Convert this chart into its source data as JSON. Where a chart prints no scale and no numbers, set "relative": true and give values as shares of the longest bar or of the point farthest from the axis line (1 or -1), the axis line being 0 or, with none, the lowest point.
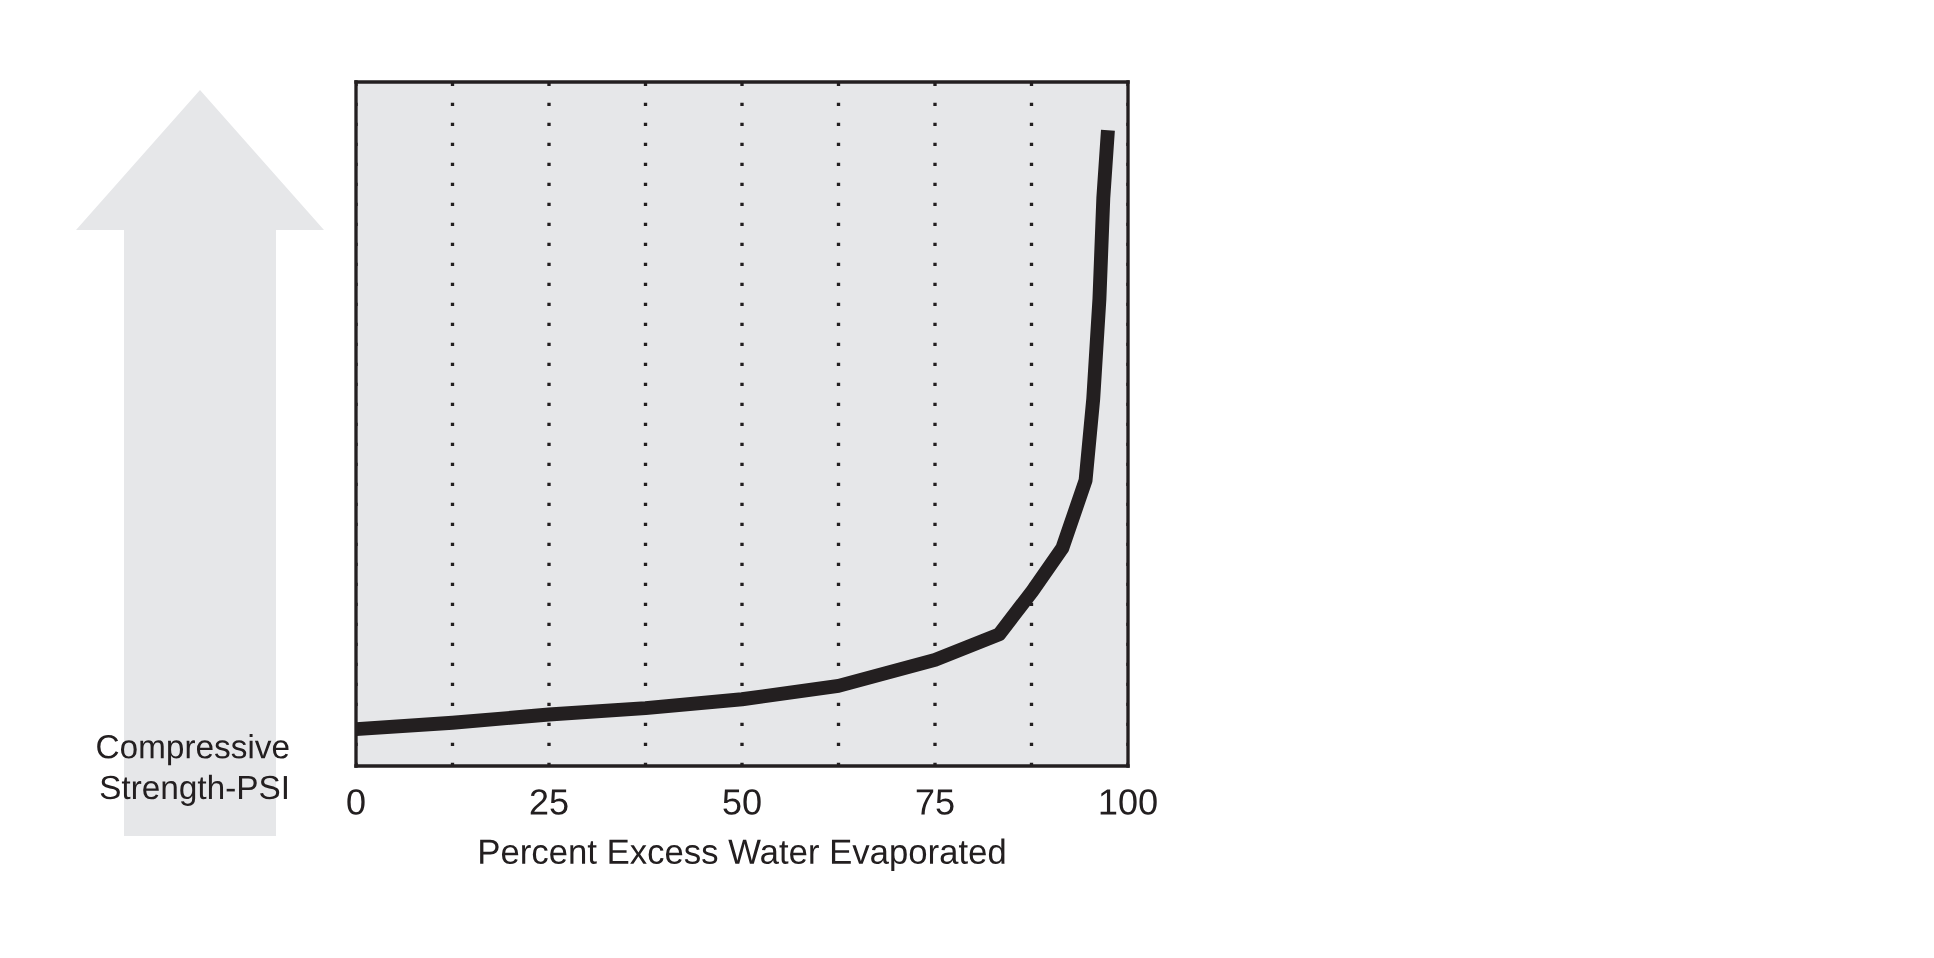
{
  "chart_data": {
    "type": "line",
    "relative": true,
    "xlabel": "Percent Excess Water Evaporated",
    "ylabel": "Compressive\nStrength-PSI",
    "series": [
      {
        "color": "#231f20",
        "x": [
          0,
          12.5,
          25,
          37.5,
          50,
          62.5,
          75,
          83.3,
          87.6,
          91.5,
          94.5,
          95.5,
          96.3,
          96.8,
          97.4
        ],
        "values": [
          0.058,
          0.068,
          0.081,
          0.091,
          0.105,
          0.126,
          0.167,
          0.207,
          0.275,
          0.343,
          0.449,
          0.578,
          0.735,
          0.893,
          1
        ]
      }
    ],
    "xlim": [
      0,
      100
    ],
    "xticks": [
      0,
      {
        "value": 12.5,
        "label": null
      },
      25,
      {
        "value": 37.5,
        "label": null
      },
      50,
      {
        "value": 62.5,
        "label": null
      },
      75,
      {
        "value": 87.5,
        "label": null
      },
      100
    ],
    "grid": "x",
    "line_style": "solid",
    "marker": "none"
  }
}
